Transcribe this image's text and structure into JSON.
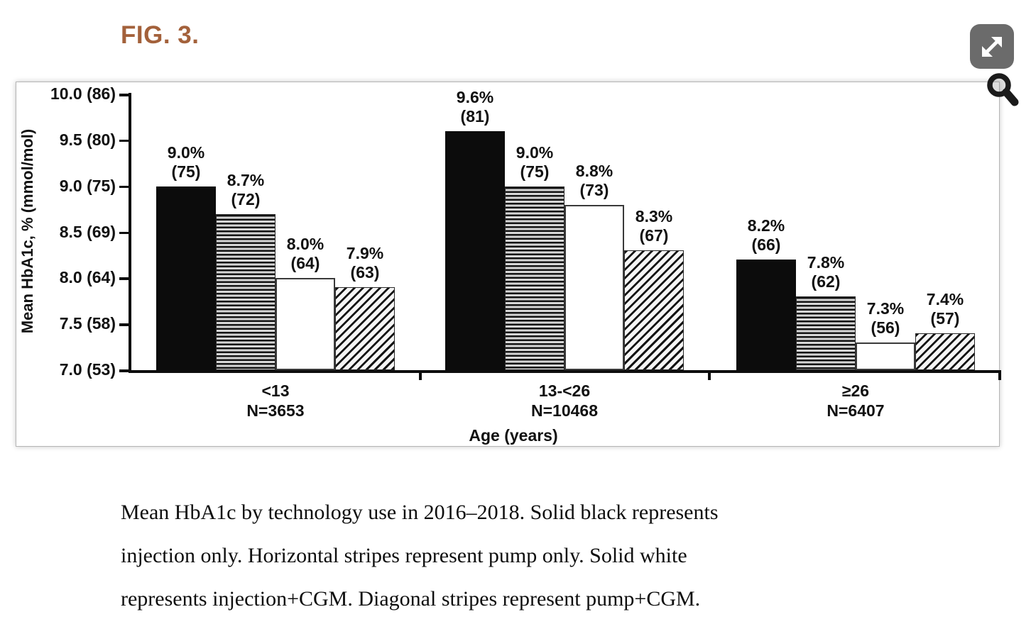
{
  "figure": {
    "label": "FIG. 3."
  },
  "icons": {
    "expand": "expand-arrows-icon",
    "magnifier": "magnifier-icon"
  },
  "accent_colors": {
    "figure_label": "#a3613b",
    "expand_button_bg": "#6b6b6b",
    "bar_black": "#0c0c0c"
  },
  "chart_data": {
    "type": "bar",
    "title": "",
    "xlabel": "Age (years)",
    "ylabel": "Mean HbA1c, % (mmol/mol)",
    "ylim": [
      7.0,
      10.0
    ],
    "grid": false,
    "legend": "none (patterns described in caption)",
    "yticks": [
      {
        "value": 10.0,
        "label": "10.0 (86)"
      },
      {
        "value": 9.5,
        "label": "9.5 (80)"
      },
      {
        "value": 9.0,
        "label": "9.0 (75)"
      },
      {
        "value": 8.5,
        "label": "8.5 (69)"
      },
      {
        "value": 8.0,
        "label": "8.0 (64)"
      },
      {
        "value": 7.5,
        "label": "7.5 (58)"
      },
      {
        "value": 7.0,
        "label": "7.0 (53)"
      }
    ],
    "categories": [
      {
        "label": "<13",
        "n_label": "N=3653"
      },
      {
        "label": "13-<26",
        "n_label": "N=10468"
      },
      {
        "label": "≥26",
        "n_label": "N=6407"
      }
    ],
    "series": [
      {
        "name": "Injection only",
        "pattern": "solid-black",
        "values": [
          9.0,
          9.6,
          8.2
        ],
        "pct_labels": [
          "9.0%",
          "9.6%",
          "8.2%"
        ],
        "mmol_labels": [
          "(75)",
          "(81)",
          "(66)"
        ]
      },
      {
        "name": "Pump only",
        "pattern": "horizontal-stripes",
        "values": [
          8.7,
          9.0,
          7.8
        ],
        "pct_labels": [
          "8.7%",
          "9.0%",
          "7.8%"
        ],
        "mmol_labels": [
          "(72)",
          "(75)",
          "(62)"
        ]
      },
      {
        "name": "Injection+CGM",
        "pattern": "solid-white",
        "values": [
          8.0,
          8.8,
          7.3
        ],
        "pct_labels": [
          "8.0%",
          "8.8%",
          "7.3%"
        ],
        "mmol_labels": [
          "(64)",
          "(73)",
          "(56)"
        ]
      },
      {
        "name": "Pump+CGM",
        "pattern": "diagonal-stripes",
        "values": [
          7.9,
          8.3,
          7.4
        ],
        "pct_labels": [
          "7.9%",
          "8.3%",
          "7.4%"
        ],
        "mmol_labels": [
          "(63)",
          "(67)",
          "(57)"
        ]
      }
    ]
  },
  "caption": {
    "lines": [
      "Mean HbA1c by technology use in 2016–2018. Solid black represents",
      "injection only. Horizontal stripes represent pump only. Solid white",
      "represents injection+CGM. Diagonal stripes represent pump+CGM."
    ]
  }
}
